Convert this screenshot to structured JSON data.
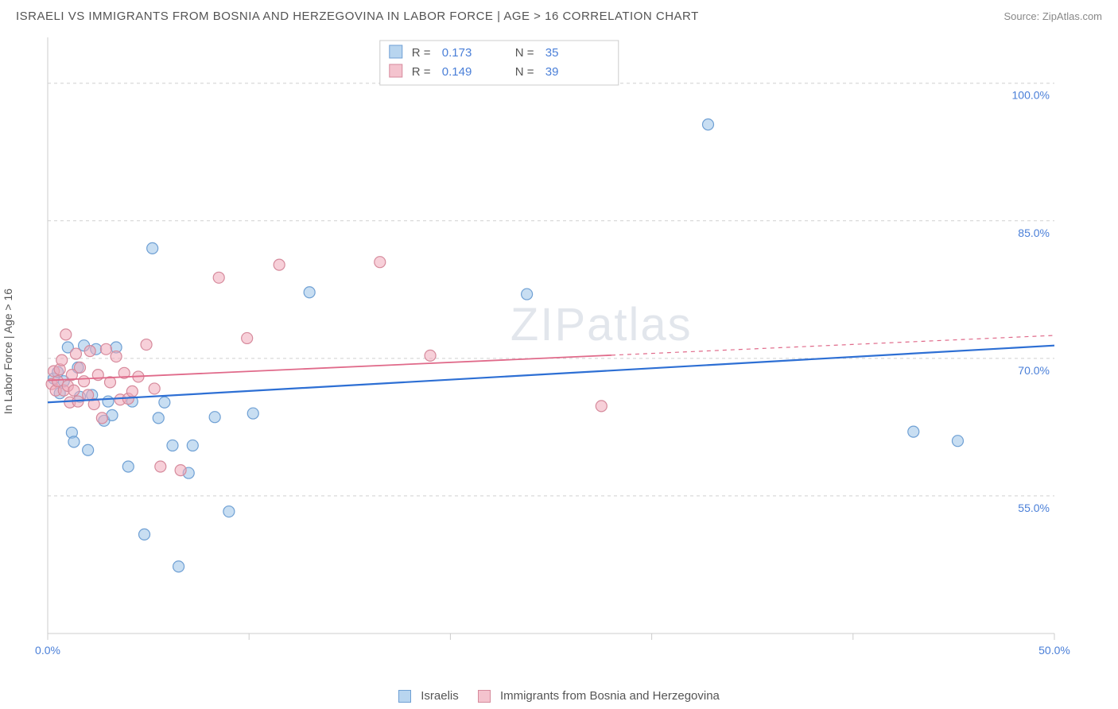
{
  "header": {
    "title": "ISRAELI VS IMMIGRANTS FROM BOSNIA AND HERZEGOVINA IN LABOR FORCE | AGE > 16 CORRELATION CHART",
    "source": "Source: ZipAtlas.com"
  },
  "chart": {
    "type": "scatter",
    "ylabel": "In Labor Force | Age > 16",
    "watermark": "ZIPatlas",
    "xlim": [
      0,
      50
    ],
    "ylim": [
      40,
      105
    ],
    "xticks": [
      0,
      10,
      20,
      30,
      40,
      50
    ],
    "xticks_labels": {
      "0": "0.0%",
      "50": "50.0%"
    },
    "yticks": [
      55,
      70,
      85,
      100
    ],
    "ytick_labels": [
      "55.0%",
      "70.0%",
      "85.0%",
      "100.0%"
    ],
    "background_color": "#ffffff",
    "grid_color": "#d0d0d0",
    "marker_radius": 7,
    "colors": {
      "series_a_fill": "#9ac3e8",
      "series_a_stroke": "#6fa0d4",
      "series_a_line": "#2d6fd4",
      "series_b_fill": "#f0aab9",
      "series_b_stroke": "#d68a9c",
      "series_b_line": "#e06a8a",
      "tick_label": "#4a7fd8",
      "text": "#555555"
    },
    "top_legend": {
      "rows": [
        {
          "label_r": "R =",
          "val_r": "0.173",
          "label_n": "N =",
          "val_n": "35"
        },
        {
          "label_r": "R =",
          "val_r": "0.149",
          "label_n": "N =",
          "val_n": "39"
        }
      ]
    },
    "series": [
      {
        "name": "Israelis",
        "color_key": "blue",
        "regression": {
          "x1": 0,
          "y1": 65.2,
          "x2": 50,
          "y2": 71.4,
          "dash_from_x": null
        },
        "points": [
          [
            0.3,
            67.8
          ],
          [
            0.5,
            68.5
          ],
          [
            0.6,
            66.2
          ],
          [
            0.8,
            67.5
          ],
          [
            1.0,
            71.2
          ],
          [
            1.2,
            61.9
          ],
          [
            1.3,
            60.9
          ],
          [
            1.5,
            69.0
          ],
          [
            1.6,
            65.8
          ],
          [
            1.8,
            71.4
          ],
          [
            2.0,
            60.0
          ],
          [
            2.2,
            66.0
          ],
          [
            2.4,
            71.0
          ],
          [
            2.8,
            63.2
          ],
          [
            3.0,
            65.3
          ],
          [
            3.2,
            63.8
          ],
          [
            3.4,
            71.2
          ],
          [
            4.0,
            58.2
          ],
          [
            4.2,
            65.3
          ],
          [
            4.8,
            50.8
          ],
          [
            5.2,
            82.0
          ],
          [
            5.5,
            63.5
          ],
          [
            5.8,
            65.2
          ],
          [
            6.2,
            60.5
          ],
          [
            6.5,
            47.3
          ],
          [
            7.0,
            57.5
          ],
          [
            7.2,
            60.5
          ],
          [
            8.3,
            63.6
          ],
          [
            9.0,
            53.3
          ],
          [
            10.2,
            64.0
          ],
          [
            13.0,
            77.2
          ],
          [
            23.8,
            77.0
          ],
          [
            32.8,
            95.5
          ],
          [
            43.0,
            62.0
          ],
          [
            45.2,
            61.0
          ]
        ]
      },
      {
        "name": "Immigrants from Bosnia and Herzegovina",
        "color_key": "pink",
        "regression": {
          "x1": 0,
          "y1": 67.6,
          "x2": 50,
          "y2": 72.5,
          "dash_from_x": 28
        },
        "points": [
          [
            0.2,
            67.2
          ],
          [
            0.3,
            68.6
          ],
          [
            0.4,
            66.5
          ],
          [
            0.5,
            67.5
          ],
          [
            0.6,
            68.8
          ],
          [
            0.7,
            69.8
          ],
          [
            0.8,
            66.5
          ],
          [
            0.9,
            72.6
          ],
          [
            1.0,
            67.0
          ],
          [
            1.1,
            65.2
          ],
          [
            1.2,
            68.2
          ],
          [
            1.3,
            66.5
          ],
          [
            1.4,
            70.5
          ],
          [
            1.5,
            65.3
          ],
          [
            1.6,
            69.0
          ],
          [
            1.8,
            67.5
          ],
          [
            2.0,
            66.0
          ],
          [
            2.1,
            70.8
          ],
          [
            2.3,
            65.0
          ],
          [
            2.5,
            68.2
          ],
          [
            2.7,
            63.5
          ],
          [
            2.9,
            71.0
          ],
          [
            3.1,
            67.4
          ],
          [
            3.4,
            70.2
          ],
          [
            3.6,
            65.5
          ],
          [
            3.8,
            68.4
          ],
          [
            4.0,
            65.6
          ],
          [
            4.2,
            66.4
          ],
          [
            4.5,
            68.0
          ],
          [
            4.9,
            71.5
          ],
          [
            5.3,
            66.7
          ],
          [
            5.6,
            58.2
          ],
          [
            6.6,
            57.8
          ],
          [
            8.5,
            78.8
          ],
          [
            9.9,
            72.2
          ],
          [
            11.5,
            80.2
          ],
          [
            16.5,
            80.5
          ],
          [
            19.0,
            70.3
          ],
          [
            27.5,
            64.8
          ]
        ]
      }
    ],
    "bottom_legend": [
      {
        "swatch": "b",
        "label": "Israelis"
      },
      {
        "swatch": "p",
        "label": "Immigrants from Bosnia and Herzegovina"
      }
    ]
  }
}
